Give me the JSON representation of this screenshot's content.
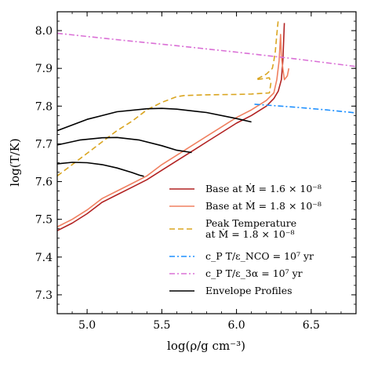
{
  "chart_data": {
    "type": "line",
    "xlabel": "log(ρ/g cm⁻³)",
    "ylabel": "log(T/K)",
    "xlim": [
      4.8,
      6.8
    ],
    "ylim": [
      7.25,
      8.05
    ],
    "xticks": [
      5.0,
      5.5,
      6.0,
      6.5
    ],
    "xtick_labels": [
      "5.0",
      "5.5",
      "6.0",
      "6.5"
    ],
    "yticks": [
      7.3,
      7.4,
      7.5,
      7.6,
      7.7,
      7.8,
      7.9,
      8.0
    ],
    "ytick_labels": [
      "7.3",
      "7.4",
      "7.5",
      "7.6",
      "7.7",
      "7.8",
      "7.9",
      "8.0"
    ],
    "grid": false,
    "legend_position": "lower-right",
    "series": [
      {
        "name": "Base at Ṁ = 1.6 × 10⁻⁸",
        "color": "#b22222",
        "dash": "solid",
        "points": [
          [
            4.8,
            7.47
          ],
          [
            4.9,
            7.49
          ],
          [
            5.0,
            7.515
          ],
          [
            5.1,
            7.545
          ],
          [
            5.2,
            7.565
          ],
          [
            5.3,
            7.585
          ],
          [
            5.4,
            7.605
          ],
          [
            5.5,
            7.63
          ],
          [
            5.6,
            7.655
          ],
          [
            5.7,
            7.68
          ],
          [
            5.8,
            7.705
          ],
          [
            5.9,
            7.73
          ],
          [
            6.0,
            7.755
          ],
          [
            6.1,
            7.775
          ],
          [
            6.2,
            7.8
          ],
          [
            6.25,
            7.82
          ],
          [
            6.28,
            7.84
          ],
          [
            6.3,
            7.87
          ],
          [
            6.31,
            7.92
          ],
          [
            6.32,
            8.02
          ]
        ]
      },
      {
        "name": "Base at Ṁ = 1.8 × 10⁻⁸",
        "color": "#f08060",
        "dash": "solid",
        "points": [
          [
            4.8,
            7.48
          ],
          [
            4.9,
            7.5
          ],
          [
            5.0,
            7.525
          ],
          [
            5.1,
            7.555
          ],
          [
            5.2,
            7.575
          ],
          [
            5.3,
            7.595
          ],
          [
            5.4,
            7.615
          ],
          [
            5.5,
            7.645
          ],
          [
            5.6,
            7.67
          ],
          [
            5.7,
            7.695
          ],
          [
            5.8,
            7.72
          ],
          [
            5.9,
            7.745
          ],
          [
            6.0,
            7.77
          ],
          [
            6.1,
            7.79
          ],
          [
            6.2,
            7.815
          ],
          [
            6.25,
            7.835
          ],
          [
            6.27,
            7.87
          ],
          [
            6.285,
            7.92
          ],
          [
            6.295,
            7.99
          ],
          [
            6.3,
            7.93
          ],
          [
            6.32,
            7.87
          ],
          [
            6.34,
            7.88
          ],
          [
            6.35,
            7.9
          ]
        ]
      },
      {
        "name": "Peak Temperature at Ṁ = 1.8 × 10⁻⁸",
        "legend_lines": [
          "Peak Temperature",
          "at Ṁ = 1.8 × 10⁻⁸"
        ],
        "color": "#daa520",
        "dash": "dashed",
        "points": [
          [
            4.8,
            7.615
          ],
          [
            4.9,
            7.645
          ],
          [
            5.0,
            7.675
          ],
          [
            5.1,
            7.705
          ],
          [
            5.2,
            7.735
          ],
          [
            5.3,
            7.76
          ],
          [
            5.4,
            7.79
          ],
          [
            5.5,
            7.81
          ],
          [
            5.6,
            7.825
          ],
          [
            5.65,
            7.828
          ],
          [
            5.8,
            7.83
          ],
          [
            6.0,
            7.831
          ],
          [
            6.1,
            7.832
          ],
          [
            6.22,
            7.835
          ],
          [
            6.23,
            7.86
          ],
          [
            6.22,
            7.875
          ],
          [
            6.13,
            7.87
          ],
          [
            6.2,
            7.885
          ],
          [
            6.24,
            7.9
          ],
          [
            6.25,
            7.92
          ],
          [
            6.26,
            7.945
          ],
          [
            6.27,
            7.99
          ],
          [
            6.28,
            8.03
          ]
        ]
      },
      {
        "name": "c_P T/ε_NCO = 10⁷ yr",
        "color": "#1e90ff",
        "dash": "dashdot",
        "points": [
          [
            6.12,
            7.805
          ],
          [
            6.4,
            7.797
          ],
          [
            6.6,
            7.79
          ],
          [
            6.8,
            7.782
          ]
        ]
      },
      {
        "name": "c_P T/ε_3α = 10⁷ yr",
        "color": "#da70d6",
        "dash": "dashdot",
        "points": [
          [
            4.8,
            7.993
          ],
          [
            5.2,
            7.976
          ],
          [
            5.6,
            7.96
          ],
          [
            6.0,
            7.943
          ],
          [
            6.4,
            7.925
          ],
          [
            6.8,
            7.905
          ]
        ]
      },
      {
        "name": "Envelope Profiles",
        "color": "#000000",
        "dash": "solid",
        "curves": [
          [
            [
              4.8,
              7.735
            ],
            [
              5.0,
              7.765
            ],
            [
              5.2,
              7.785
            ],
            [
              5.4,
              7.793
            ],
            [
              5.5,
              7.794
            ],
            [
              5.6,
              7.792
            ],
            [
              5.8,
              7.783
            ],
            [
              6.0,
              7.767
            ],
            [
              6.1,
              7.758
            ]
          ],
          [
            [
              4.8,
              7.697
            ],
            [
              4.95,
              7.71
            ],
            [
              5.1,
              7.716
            ],
            [
              5.2,
              7.717
            ],
            [
              5.35,
              7.71
            ],
            [
              5.5,
              7.695
            ],
            [
              5.6,
              7.683
            ],
            [
              5.7,
              7.677
            ]
          ],
          [
            [
              4.8,
              7.647
            ],
            [
              4.9,
              7.651
            ],
            [
              5.0,
              7.65
            ],
            [
              5.1,
              7.645
            ],
            [
              5.2,
              7.636
            ],
            [
              5.3,
              7.624
            ],
            [
              5.35,
              7.617
            ],
            [
              5.38,
              7.614
            ]
          ]
        ]
      }
    ]
  }
}
